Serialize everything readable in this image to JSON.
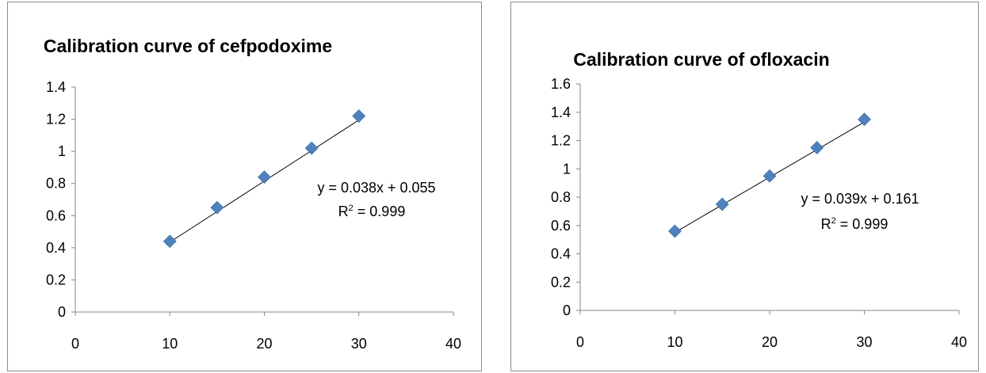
{
  "chart_data": [
    {
      "type": "scatter",
      "title": "Calibration curve of cefpodoxime",
      "xlabel": "",
      "ylabel": "",
      "xlim": [
        0,
        40
      ],
      "ylim": [
        0,
        1.4
      ],
      "xticks": [
        0,
        10,
        20,
        30,
        40
      ],
      "yticks": [
        0,
        0.2,
        0.4,
        0.6,
        0.8,
        1,
        1.2,
        1.4
      ],
      "xtick_labels": [
        "0",
        "10",
        "20",
        "30",
        "40"
      ],
      "ytick_labels": [
        "0",
        "0.2",
        "0.4",
        "0.6",
        "0.8",
        "1",
        "1.2",
        "1.4"
      ],
      "grid": false,
      "legend": false,
      "marker_color": "#4f81bd",
      "series": [
        {
          "x": [
            10,
            15,
            20,
            25,
            30
          ],
          "y": [
            0.44,
            0.65,
            0.84,
            1.02,
            1.22
          ]
        }
      ],
      "trendline": {
        "type": "linear",
        "slope": 0.038,
        "intercept": 0.055,
        "x_range": [
          10,
          30
        ]
      },
      "annotations": {
        "equation": "y = 0.038x + 0.055",
        "r2_prefix": "R",
        "r2_sup": "2",
        "r2_value": " = 0.999"
      }
    },
    {
      "type": "scatter",
      "title": "Calibration curve of ofloxacin",
      "xlabel": "",
      "ylabel": "",
      "xlim": [
        0,
        40
      ],
      "ylim": [
        0,
        1.6
      ],
      "xticks": [
        0,
        10,
        20,
        30,
        40
      ],
      "yticks": [
        0,
        0.2,
        0.4,
        0.6,
        0.8,
        1,
        1.2,
        1.4,
        1.6
      ],
      "xtick_labels": [
        "0",
        "10",
        "20",
        "30",
        "40"
      ],
      "ytick_labels": [
        "0",
        "0.2",
        "0.4",
        "0.6",
        "0.8",
        "1",
        "1.2",
        "1.4",
        "1.6"
      ],
      "grid": false,
      "legend": false,
      "marker_color": "#4f81bd",
      "series": [
        {
          "x": [
            10,
            15,
            20,
            25,
            30
          ],
          "y": [
            0.56,
            0.75,
            0.95,
            1.15,
            1.35
          ]
        }
      ],
      "trendline": {
        "type": "linear",
        "slope": 0.039,
        "intercept": 0.161,
        "x_range": [
          10,
          30
        ]
      },
      "annotations": {
        "equation": "y = 0.039x + 0.161",
        "r2_prefix": "R",
        "r2_sup": "2",
        "r2_value": " = 0.999"
      }
    }
  ]
}
